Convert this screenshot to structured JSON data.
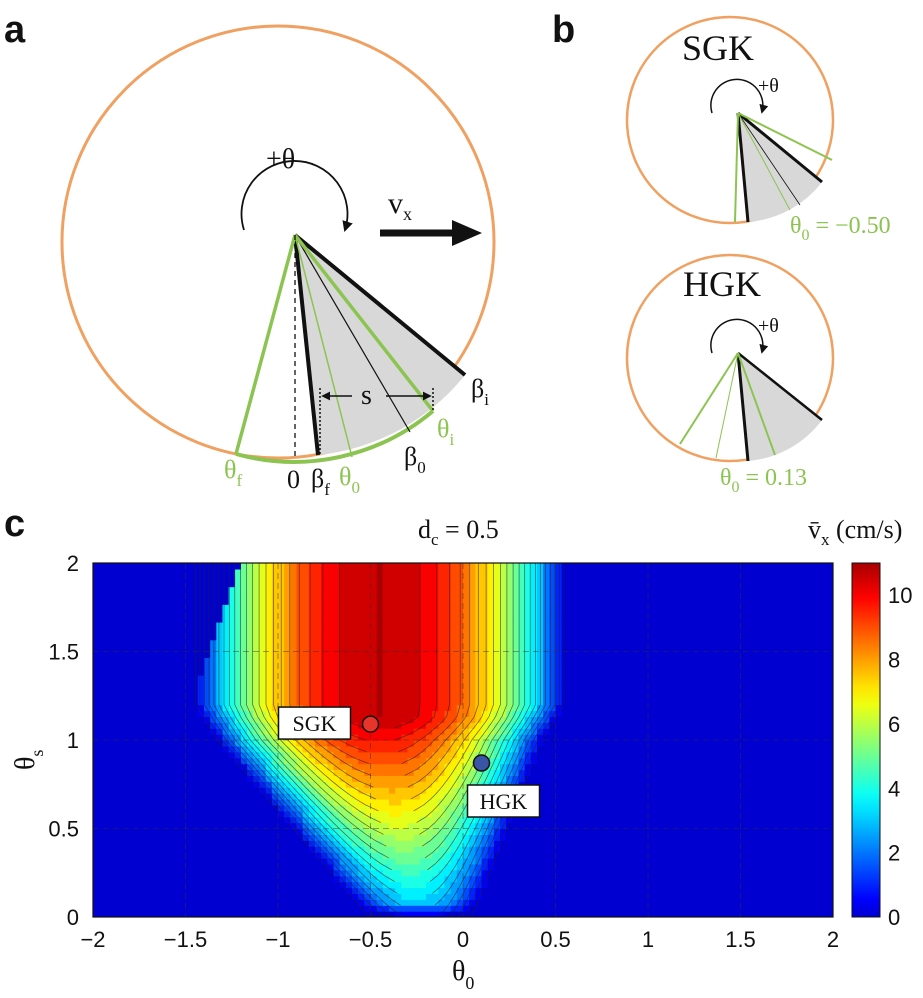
{
  "panels": {
    "a": "a",
    "b": "b",
    "c": "c"
  },
  "panel_a": {
    "rotation_label": "+θ",
    "velocity_label": "v",
    "velocity_sub": "x",
    "s_label": "s",
    "angle_labels": {
      "theta": "θ",
      "beta": "β",
      "sub_f": "f",
      "sub_0": "0",
      "sub_i": "i",
      "zero": "0"
    }
  },
  "panel_b": {
    "sgk_title": "SGK",
    "hgk_title": "HGK",
    "rotation_label": "+θ",
    "sgk_theta0_label": "θ",
    "sgk_theta0_sub": "0",
    "sgk_theta0_value": " = −0.50",
    "hgk_theta0_label": "θ",
    "hgk_theta0_sub": "0",
    "hgk_theta0_value": " = 0.13"
  },
  "chart_data": {
    "type": "heatmap",
    "title_main": "d",
    "title_sub": "c",
    "title_value": " = 0.5",
    "xlabel": "θ",
    "xlabel_sub": "0",
    "ylabel": "θ",
    "ylabel_sub": "s",
    "xlim": [
      -2,
      2
    ],
    "ylim": [
      0,
      2
    ],
    "xticks": [
      "−2",
      "−1.5",
      "−1",
      "−0.5",
      "0",
      "0.5",
      "1",
      "1.5",
      "2"
    ],
    "yticks": [
      "0",
      "0.5",
      "1",
      "1.5",
      "2"
    ],
    "colorbar_label": "v̄",
    "colorbar_label_sub": "x",
    "colorbar_units": " (cm/s)",
    "colorbar_range": [
      0,
      11
    ],
    "colorbar_ticks": [
      "0",
      "2",
      "4",
      "6",
      "8",
      "10"
    ],
    "contour_levels": [
      0.5,
      1,
      1.5,
      2,
      2.5,
      3,
      3.5,
      4,
      4.5,
      5,
      5.5,
      6,
      6.5,
      7,
      7.5,
      8,
      8.5,
      9,
      9.5,
      10,
      10.5
    ],
    "max_value": 11,
    "markers": [
      {
        "label": "SGK",
        "theta0": -0.5,
        "theta_s": 1.09,
        "color": "#e8352b"
      },
      {
        "label": "HGK",
        "theta0": 0.1,
        "theta_s": 0.87,
        "color": "#3a55a5"
      }
    ]
  }
}
